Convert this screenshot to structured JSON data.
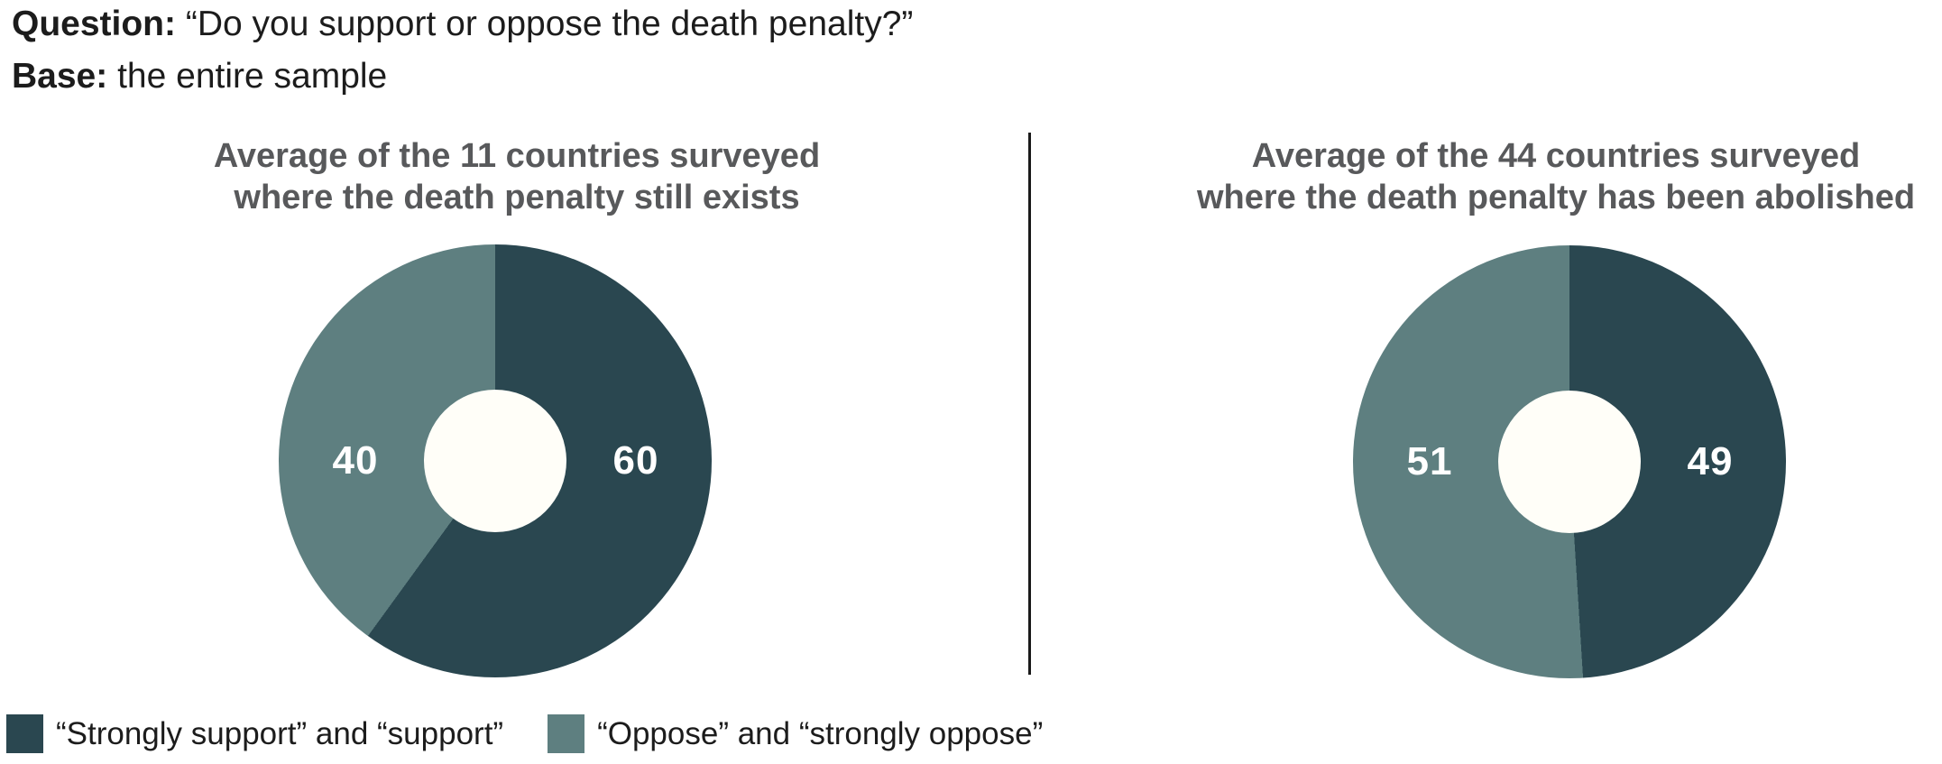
{
  "header": {
    "question_label": "Question:",
    "question_text": "“Do you support or oppose the death penalty?”",
    "base_label": "Base:",
    "base_text": "the entire sample"
  },
  "colors": {
    "support_dark": "#2A4750",
    "oppose_light": "#5E7F80",
    "donut_hole": "#FFFEF8",
    "title_gray": "#58595B",
    "text_black": "#1C1C1C",
    "divider": "#1A1A1A",
    "value_label_white": "#FFFFFF",
    "background": "#FFFFFF"
  },
  "legend": {
    "position": "bottom-left",
    "items": [
      {
        "label": "“Strongly support” and “support”",
        "color": "#2A4750"
      },
      {
        "label": "“Oppose” and “strongly oppose”",
        "color": "#5E7F80"
      }
    ]
  },
  "chart_data": [
    {
      "type": "pie",
      "subtype": "donut",
      "title": "Average of the 11 countries surveyed where the death penalty still exists",
      "title_lines": [
        "Average of the 11 countries surveyed",
        "where the death penalty still exists"
      ],
      "categories": [
        "“Strongly support” and “support”",
        "“Oppose” and “strongly oppose”"
      ],
      "values": [
        60,
        40
      ],
      "segments": [
        {
          "category": "“Strongly support” and “support”",
          "value": 60,
          "color": "#2A4750"
        },
        {
          "category": "“Oppose” and “strongly oppose”",
          "value": 40,
          "color": "#5E7F80"
        }
      ],
      "value_labels": {
        "right": "60",
        "left": "40"
      },
      "start_angle": "12-oclock",
      "direction": "clockwise",
      "donut_hole_ratio": 0.33
    },
    {
      "type": "pie",
      "subtype": "donut",
      "title": "Average of the 44 countries surveyed where the death penalty has been abolished",
      "title_lines": [
        "Average of the 44 countries surveyed",
        "where the death penalty has been abolished"
      ],
      "categories": [
        "“Strongly support” and “support”",
        "“Oppose” and “strongly oppose”"
      ],
      "values": [
        49,
        51
      ],
      "segments": [
        {
          "category": "“Strongly support” and “support”",
          "value": 49,
          "color": "#2A4750"
        },
        {
          "category": "“Oppose” and “strongly oppose”",
          "value": 51,
          "color": "#5E7F80"
        }
      ],
      "value_labels": {
        "right": "49",
        "left": "51"
      },
      "start_angle": "12-oclock",
      "direction": "clockwise",
      "donut_hole_ratio": 0.33
    }
  ]
}
